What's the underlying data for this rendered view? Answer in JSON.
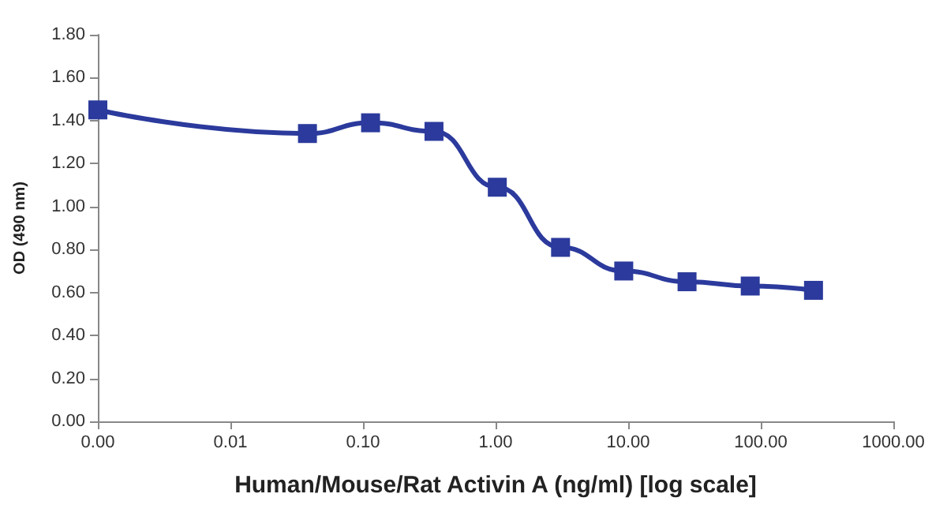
{
  "chart_data": {
    "type": "line",
    "xlabel": "Human/Mouse/Rat Activin A (ng/ml) [log scale]",
    "ylabel": "OD (490 nm)",
    "x": [
      0.001,
      0.0381,
      0.114,
      0.343,
      1.03,
      3.09,
      9.26,
      27.8,
      83.3,
      250
    ],
    "series": [
      {
        "color": "#2b3a9c",
        "values": [
          1.45,
          1.34,
          1.39,
          1.35,
          1.09,
          0.81,
          0.7,
          0.65,
          0.63,
          0.61
        ]
      }
    ],
    "log": "x",
    "xlim": [
      0.001,
      1000
    ],
    "xticks": [
      {
        "value": 0.001,
        "label": "0.00"
      },
      {
        "value": 0.01,
        "label": "0.01"
      },
      {
        "value": 0.1,
        "label": "0.10"
      },
      {
        "value": 1,
        "label": "1.00"
      },
      {
        "value": 10,
        "label": "10.00"
      },
      {
        "value": 100,
        "label": "100.00"
      },
      {
        "value": 1000,
        "label": "1000.00"
      }
    ],
    "ylim": [
      0,
      1.8
    ],
    "yticks": [
      {
        "value": 0,
        "label": "0.00"
      },
      {
        "value": 0.2,
        "label": "0.20"
      },
      {
        "value": 0.4,
        "label": "0.40"
      },
      {
        "value": 0.6,
        "label": "0.60"
      },
      {
        "value": 0.8,
        "label": "0.80"
      },
      {
        "value": 1,
        "label": "1.00"
      },
      {
        "value": 1.2,
        "label": "1.20"
      },
      {
        "value": 1.4,
        "label": "1.40"
      },
      {
        "value": 1.6,
        "label": "1.60"
      },
      {
        "value": 1.8,
        "label": "1.80"
      }
    ],
    "grid": false,
    "marker": "square",
    "line_style": "solid"
  }
}
